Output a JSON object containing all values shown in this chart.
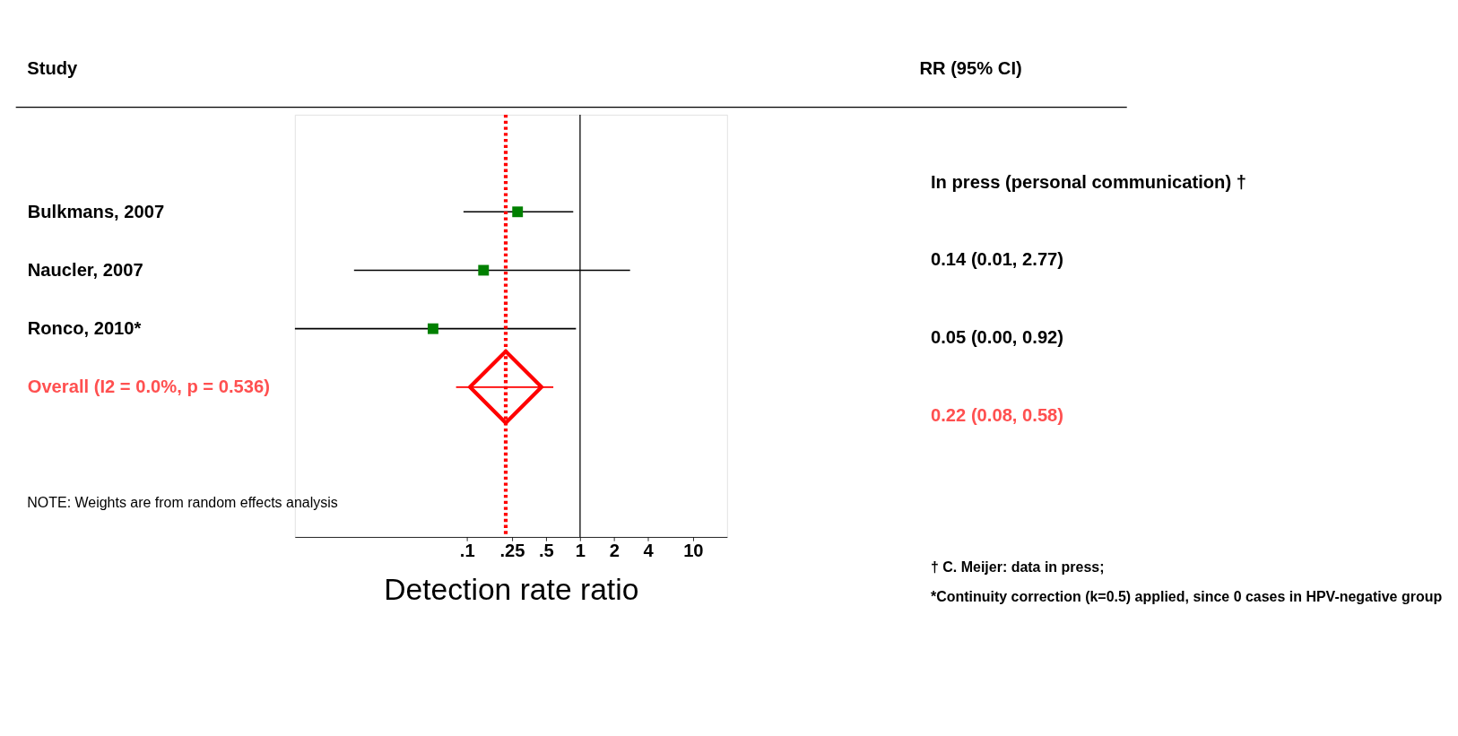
{
  "chart_data": {
    "type": "scatter",
    "orientation": "horizontal",
    "xlabel": "Detection rate ratio",
    "categories": [
      "Bulkmans, 2007",
      "Naucler, 2007",
      "Ronco, 2010*",
      "Overall  (I2 = 0.0%, p = 0.536)"
    ],
    "log": "x",
    "xlim": [
      0.003,
      20
    ],
    "xticks": [
      {
        "value": 0.1,
        "label": ".1"
      },
      {
        "value": 0.25,
        "label": ".25"
      },
      {
        "value": 0.5,
        "label": ".5"
      },
      1,
      2,
      4,
      10
    ],
    "grid": false,
    "series": [
      {
        "color": "#008000",
        "marker": "square",
        "values": [
          0.28,
          0.14,
          0.05,
          null
        ],
        "errors": [
          [
            0.093,
            0.87
          ],
          [
            0.01,
            2.77
          ],
          [
            0.003,
            0.92
          ],
          null
        ]
      },
      {
        "color": "#ff0000",
        "marker": "diamond",
        "values": [
          null,
          null,
          null,
          0.22
        ],
        "errors": [
          null,
          null,
          null,
          [
            0.08,
            0.58
          ]
        ]
      }
    ],
    "ref_lines": [
      {
        "axis": "x",
        "value": 1,
        "color": "#000000",
        "line_style": "solid"
      },
      {
        "axis": "x",
        "value": 0.22,
        "color": "#ff0000",
        "line_style": "dotted"
      }
    ],
    "annotations": [
      "Study",
      "RR (95% CI)",
      "In press (personal communication) †",
      "0.14 (0.01, 2.77)",
      "0.05 (0.00, 0.92)",
      "0.22 (0.08, 0.58)",
      "NOTE: Weights are from random effects analysis",
      "† C. Meijer: data in press;",
      "*Continuity correction (k=0.5) applied, since 0 cases in HPV-negative group"
    ]
  }
}
